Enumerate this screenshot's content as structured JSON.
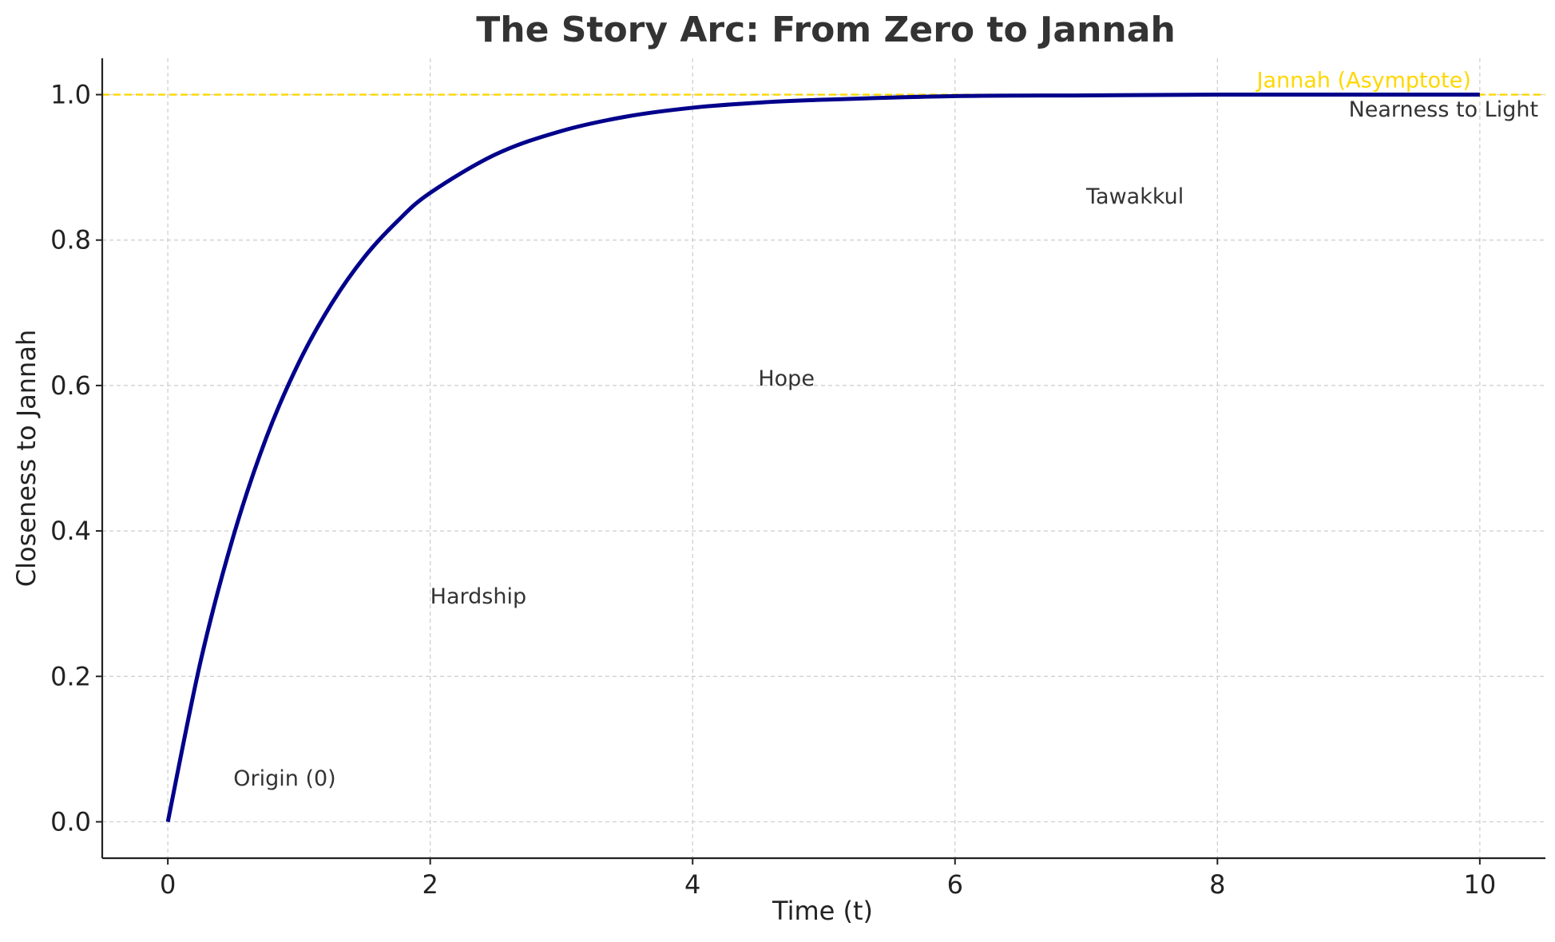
{
  "chart_data": {
    "type": "line",
    "title": "The Story Arc: From Zero to Jannah",
    "xlabel": "Time (t)",
    "ylabel": "Closeness to Jannah",
    "xlim": [
      -0.5,
      10.5
    ],
    "ylim": [
      -0.05,
      1.05
    ],
    "xticks": [
      0,
      2,
      4,
      6,
      8,
      10
    ],
    "xtick_labels": [
      "0",
      "2",
      "4",
      "6",
      "8",
      "10"
    ],
    "yticks": [
      0.0,
      0.2,
      0.4,
      0.6,
      0.8,
      1.0
    ],
    "ytick_labels": [
      "0.0",
      "0.2",
      "0.4",
      "0.6",
      "0.8",
      "1.0"
    ],
    "grid": true,
    "series": [
      {
        "color": "#00008b",
        "x": [
          0,
          0.25,
          0.5,
          0.75,
          1,
          1.25,
          1.5,
          1.75,
          2,
          2.5,
          3,
          3.5,
          4,
          4.5,
          5,
          6,
          7,
          8,
          9,
          10
        ],
        "y": [
          0.0,
          0.221,
          0.393,
          0.528,
          0.632,
          0.713,
          0.777,
          0.826,
          0.865,
          0.918,
          0.95,
          0.97,
          0.982,
          0.989,
          0.993,
          0.998,
          0.999,
          1.0,
          1.0,
          1.0
        ]
      }
    ],
    "asymptote": {
      "y": 1.0,
      "label": "Jannah (Asymptote)",
      "label_x": 8.3,
      "label_y": 1.01,
      "color": "#ffd700"
    },
    "annotations": [
      {
        "text": "Origin (0)",
        "x": 0.5,
        "y": 0.05
      },
      {
        "text": "Hardship",
        "x": 2.0,
        "y": 0.3
      },
      {
        "text": "Hope",
        "x": 4.5,
        "y": 0.6
      },
      {
        "text": "Tawakkul",
        "x": 7.0,
        "y": 0.85
      },
      {
        "text": "Nearness to Light",
        "x": 9.0,
        "y": 0.97
      }
    ]
  }
}
